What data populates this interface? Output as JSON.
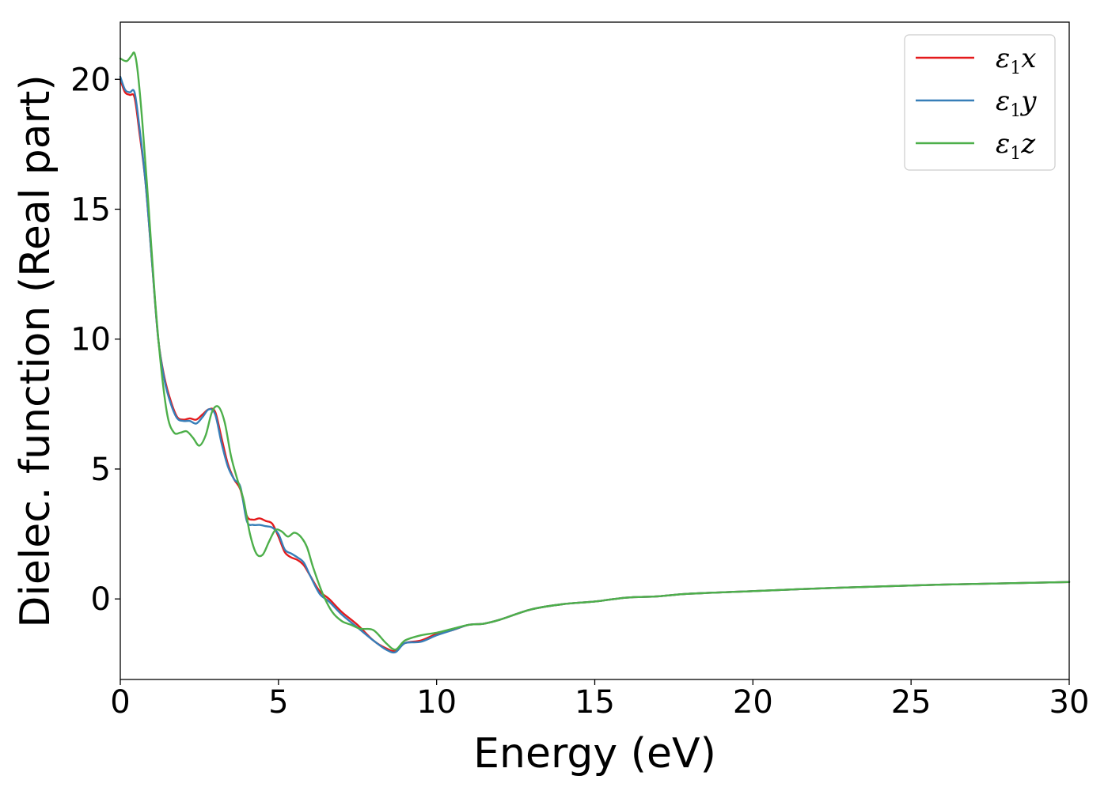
{
  "chart_data": {
    "type": "line",
    "title": "",
    "xlabel": "Energy (eV)",
    "ylabel": "Dielec. function (Real part)",
    "xlim": [
      0,
      30
    ],
    "ylim": [
      -3.1,
      22.2
    ],
    "xticks": [
      0,
      5,
      10,
      15,
      20,
      25,
      30
    ],
    "yticks": [
      0,
      5,
      10,
      15,
      20
    ],
    "xtick_labels": [
      "0",
      "5",
      "10",
      "15",
      "20",
      "25",
      "30"
    ],
    "ytick_labels": [
      "0",
      "5",
      "10",
      "15",
      "20"
    ],
    "grid": false,
    "legend_position": "top-right",
    "series": [
      {
        "name": "ε1x",
        "name_base": "ε",
        "name_sub": "1",
        "name_tail": "x",
        "color": "#e41a1c",
        "x": [
          0,
          0.15,
          0.3,
          0.45,
          0.6,
          0.8,
          1.0,
          1.2,
          1.4,
          1.6,
          1.8,
          2.0,
          2.2,
          2.4,
          2.6,
          2.8,
          3.0,
          3.2,
          3.4,
          3.6,
          3.8,
          4.0,
          4.2,
          4.4,
          4.6,
          4.8,
          5.0,
          5.2,
          5.4,
          5.6,
          5.8,
          6.0,
          6.3,
          6.6,
          7.0,
          7.5,
          8.0,
          8.4,
          8.7,
          9.0,
          9.5,
          10.0,
          10.5,
          11.0,
          11.5,
          12.0,
          13.0,
          14.0,
          15.0,
          16.0,
          17.0,
          18.0,
          20.0,
          22.0,
          24.0,
          26.0,
          28.0,
          30.0
        ],
        "y": [
          20.0,
          19.5,
          19.4,
          19.3,
          18.0,
          16.0,
          13.0,
          10.0,
          8.5,
          7.6,
          7.0,
          6.9,
          6.95,
          6.9,
          7.1,
          7.3,
          7.2,
          6.2,
          5.2,
          4.6,
          4.2,
          3.2,
          3.05,
          3.1,
          3.0,
          2.9,
          2.4,
          1.8,
          1.6,
          1.5,
          1.3,
          0.9,
          0.3,
          0.0,
          -0.5,
          -1.0,
          -1.6,
          -1.9,
          -2.0,
          -1.7,
          -1.6,
          -1.35,
          -1.2,
          -1.0,
          -0.95,
          -0.8,
          -0.4,
          -0.2,
          -0.1,
          0.05,
          0.1,
          0.2,
          0.3,
          0.4,
          0.48,
          0.55,
          0.6,
          0.65
        ]
      },
      {
        "name": "ε1y",
        "name_base": "ε",
        "name_sub": "1",
        "name_tail": "y",
        "color": "#377eb8",
        "x": [
          0,
          0.15,
          0.3,
          0.45,
          0.6,
          0.8,
          1.0,
          1.2,
          1.4,
          1.6,
          1.8,
          2.0,
          2.2,
          2.4,
          2.6,
          2.8,
          3.0,
          3.2,
          3.4,
          3.6,
          3.8,
          4.0,
          4.2,
          4.4,
          4.6,
          4.8,
          5.0,
          5.2,
          5.4,
          5.6,
          5.8,
          6.0,
          6.3,
          6.6,
          7.0,
          7.5,
          8.0,
          8.4,
          8.7,
          9.0,
          9.5,
          10.0,
          10.5,
          11.0,
          11.5,
          12.0,
          13.0,
          14.0,
          15.0,
          16.0,
          17.0,
          18.0,
          20.0,
          22.0,
          24.0,
          26.0,
          28.0,
          30.0
        ],
        "y": [
          20.1,
          19.6,
          19.5,
          19.5,
          18.2,
          16.0,
          13.0,
          10.0,
          8.4,
          7.5,
          6.95,
          6.85,
          6.85,
          6.75,
          7.0,
          7.3,
          7.1,
          6.0,
          5.1,
          4.6,
          4.3,
          3.0,
          2.85,
          2.85,
          2.8,
          2.75,
          2.5,
          1.9,
          1.75,
          1.6,
          1.4,
          0.9,
          0.2,
          -0.1,
          -0.6,
          -1.1,
          -1.6,
          -1.95,
          -2.05,
          -1.7,
          -1.65,
          -1.4,
          -1.2,
          -1.0,
          -0.95,
          -0.8,
          -0.4,
          -0.2,
          -0.1,
          0.05,
          0.1,
          0.2,
          0.3,
          0.4,
          0.48,
          0.55,
          0.6,
          0.65
        ]
      },
      {
        "name": "ε1z",
        "name_base": "ε",
        "name_sub": "1",
        "name_tail": "z",
        "color": "#4daf4a",
        "x": [
          0,
          0.2,
          0.35,
          0.45,
          0.55,
          0.7,
          0.9,
          1.1,
          1.3,
          1.5,
          1.7,
          1.9,
          2.1,
          2.3,
          2.5,
          2.7,
          2.9,
          3.1,
          3.3,
          3.5,
          3.7,
          3.9,
          4.1,
          4.3,
          4.5,
          4.7,
          4.9,
          5.1,
          5.3,
          5.5,
          5.7,
          5.9,
          6.1,
          6.4,
          6.7,
          7.0,
          7.3,
          7.6,
          8.0,
          8.4,
          8.7,
          9.0,
          9.5,
          10.0,
          10.5,
          11.0,
          11.5,
          12.0,
          13.0,
          14.0,
          15.0,
          16.0,
          17.0,
          18.0,
          20.0,
          22.0,
          24.0,
          26.0,
          28.0,
          30.0
        ],
        "y": [
          20.8,
          20.7,
          20.9,
          21.0,
          20.3,
          18.3,
          15.0,
          11.5,
          8.8,
          7.0,
          6.4,
          6.4,
          6.45,
          6.2,
          5.9,
          6.3,
          7.2,
          7.4,
          6.8,
          5.5,
          4.6,
          3.8,
          2.5,
          1.75,
          1.7,
          2.2,
          2.65,
          2.6,
          2.4,
          2.55,
          2.4,
          2.0,
          1.2,
          0.2,
          -0.5,
          -0.85,
          -1.0,
          -1.15,
          -1.2,
          -1.7,
          -1.95,
          -1.6,
          -1.4,
          -1.3,
          -1.15,
          -1.0,
          -0.95,
          -0.8,
          -0.4,
          -0.2,
          -0.1,
          0.05,
          0.1,
          0.2,
          0.3,
          0.4,
          0.48,
          0.55,
          0.6,
          0.65
        ]
      }
    ]
  }
}
